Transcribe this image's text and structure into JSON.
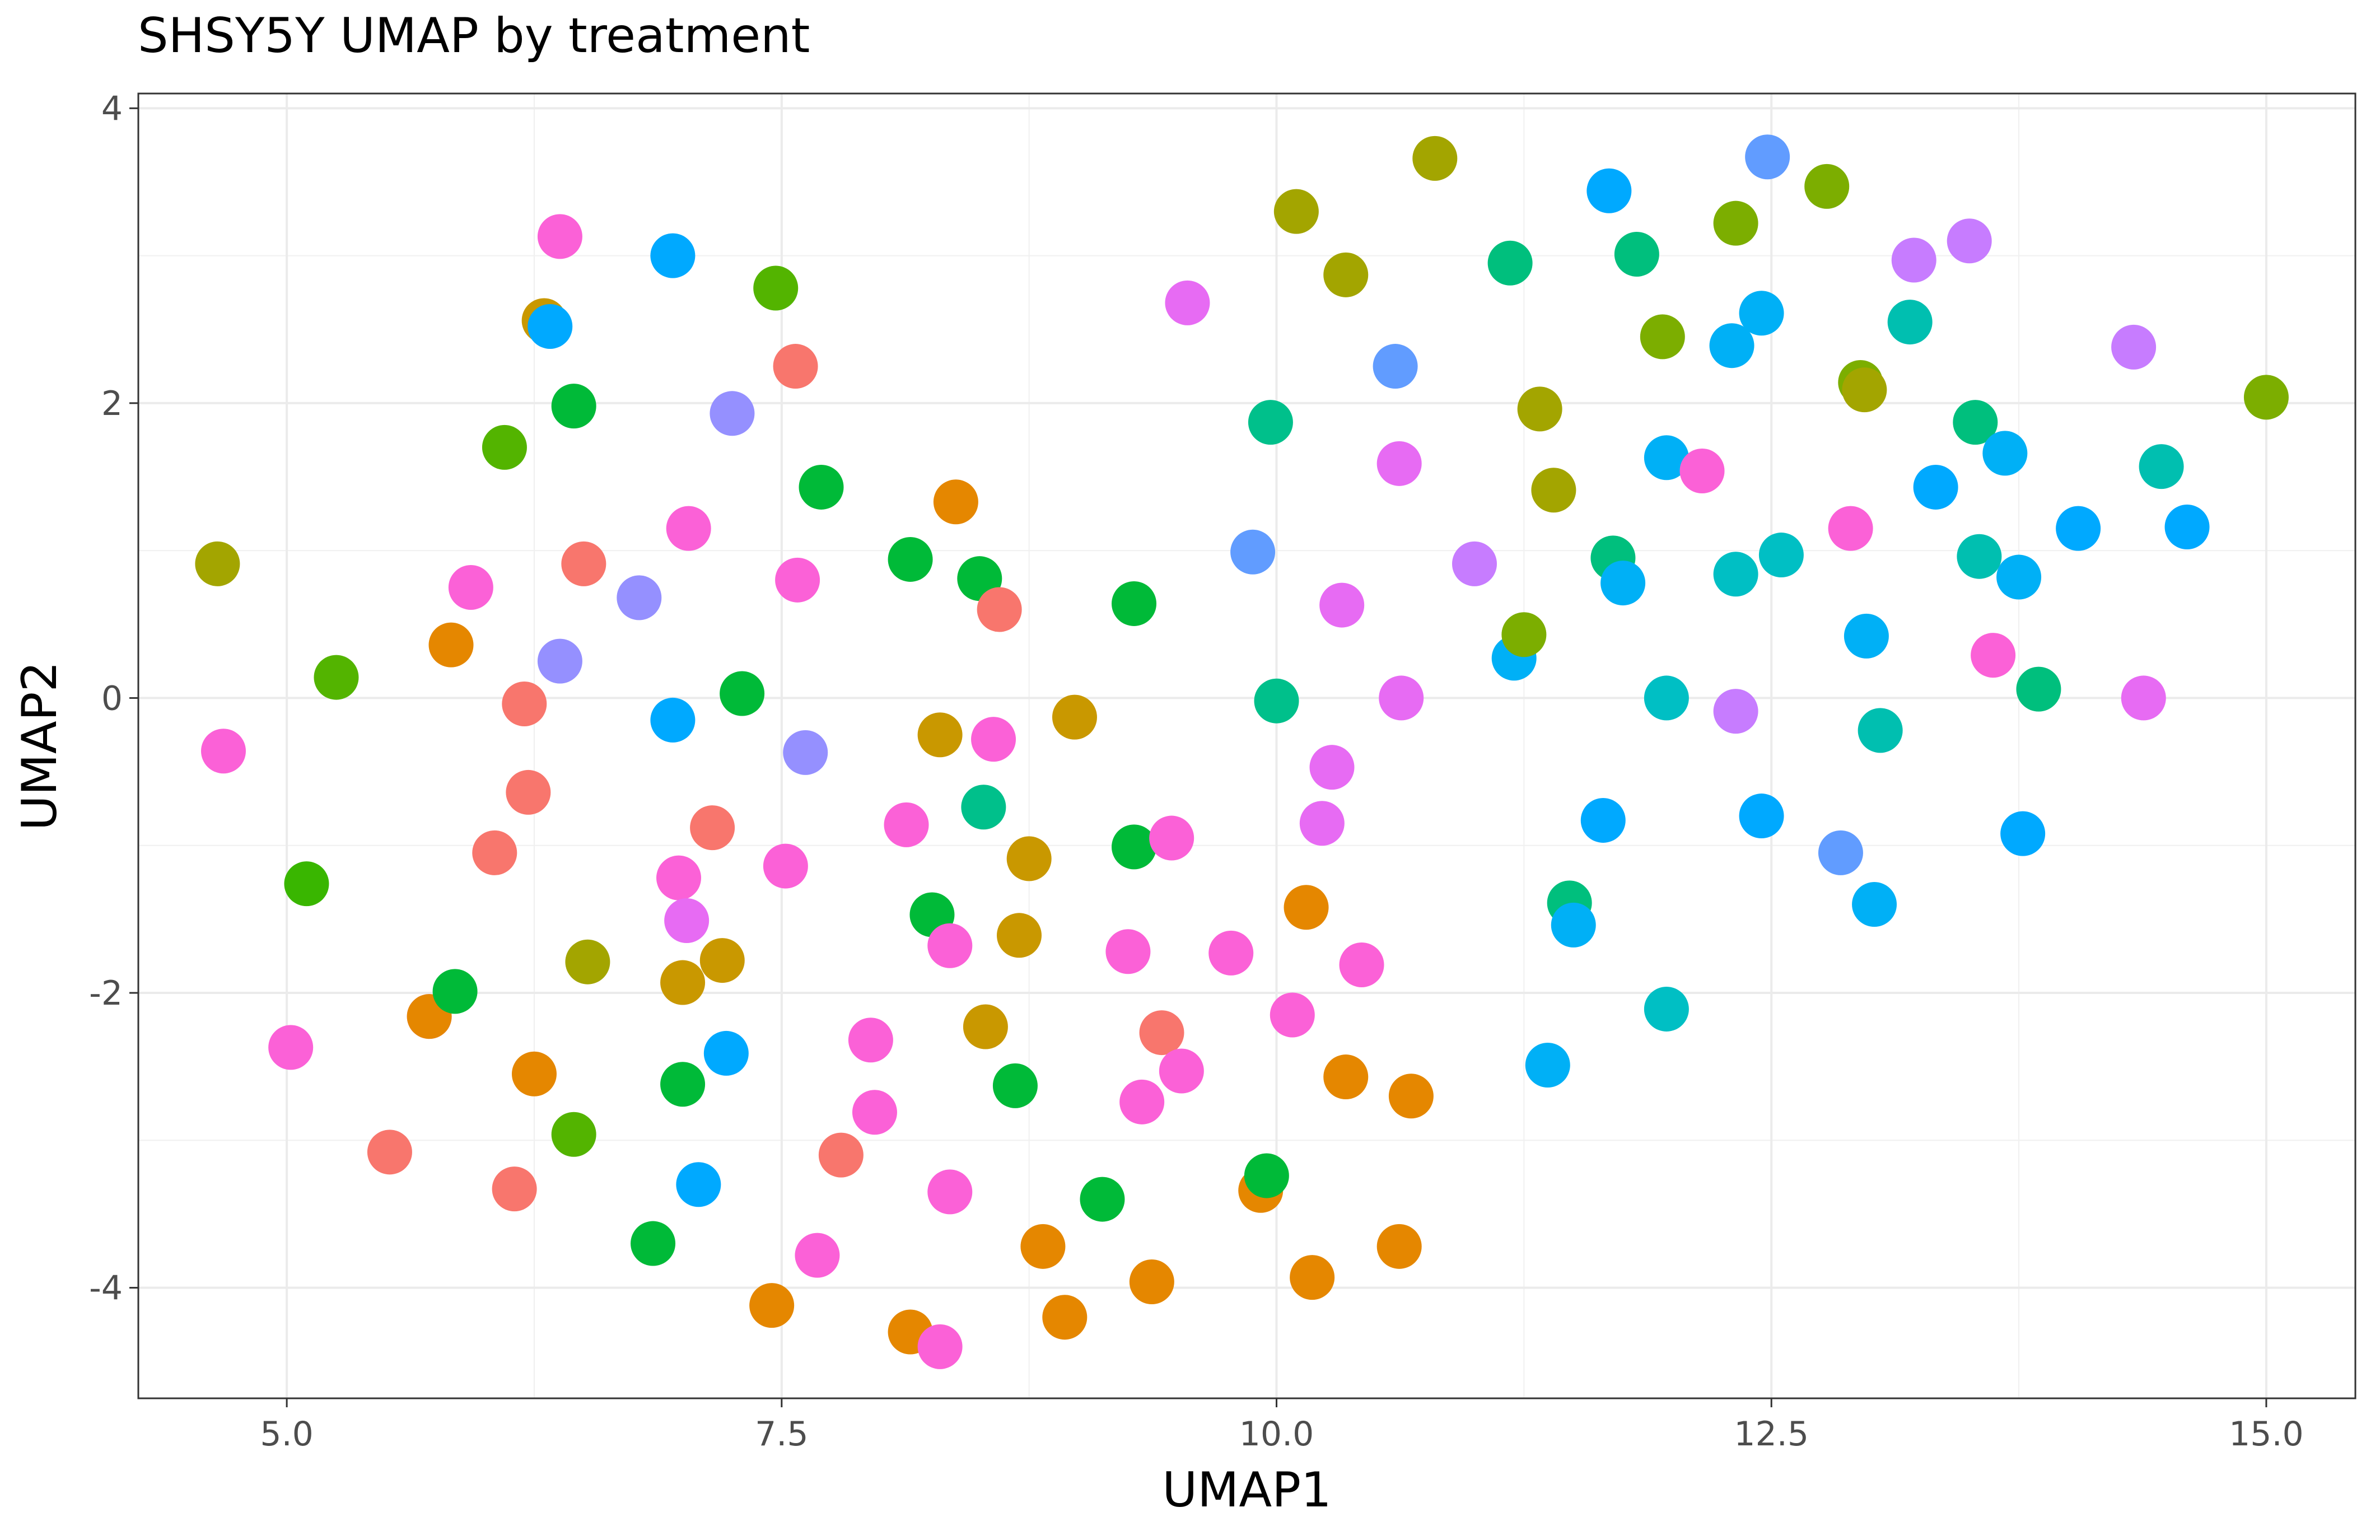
{
  "chart_data": {
    "type": "scatter",
    "title": "SHSY5Y UMAP by treatment",
    "xlabel": "UMAP1",
    "ylabel": "UMAP2",
    "xlim": [
      4.25,
      15.45
    ],
    "ylim": [
      -4.75,
      4.1
    ],
    "x_ticks": [
      5.0,
      7.5,
      10.0,
      12.5,
      15.0
    ],
    "x_tick_labels": [
      "5.0",
      "7.5",
      "10.0",
      "12.5",
      "15.0"
    ],
    "y_ticks": [
      -4,
      -2,
      0,
      2,
      4
    ],
    "y_tick_labels": [
      "-4",
      "-2",
      "0",
      "2",
      "4"
    ],
    "grid": true,
    "legend": "none",
    "points": [
      {
        "x": 4.65,
        "y": 0.91,
        "color": "#A3A500"
      },
      {
        "x": 4.68,
        "y": -0.36,
        "color": "#FB61D7"
      },
      {
        "x": 5.02,
        "y": -2.37,
        "color": "#FB61D7"
      },
      {
        "x": 5.1,
        "y": -1.26,
        "color": "#39B600"
      },
      {
        "x": 5.25,
        "y": 0.14,
        "color": "#53B400"
      },
      {
        "x": 5.52,
        "y": -3.08,
        "color": "#F8766D"
      },
      {
        "x": 5.72,
        "y": -2.16,
        "color": "#E76BF3"
      },
      {
        "x": 5.72,
        "y": -2.16,
        "color": "#E58700"
      },
      {
        "x": 5.83,
        "y": 0.36,
        "color": "#E58700"
      },
      {
        "x": 5.85,
        "y": -1.99,
        "color": "#00BA38"
      },
      {
        "x": 5.93,
        "y": 0.75,
        "color": "#FB61D7"
      },
      {
        "x": 6.05,
        "y": -1.05,
        "color": "#F8766D"
      },
      {
        "x": 6.1,
        "y": 1.7,
        "color": "#53B400"
      },
      {
        "x": 6.15,
        "y": -3.33,
        "color": "#F8766D"
      },
      {
        "x": 6.2,
        "y": -0.04,
        "color": "#F8766D"
      },
      {
        "x": 6.22,
        "y": -0.64,
        "color": "#F8766D"
      },
      {
        "x": 6.25,
        "y": -2.55,
        "color": "#E58700"
      },
      {
        "x": 6.3,
        "y": 2.56,
        "color": "#C99800"
      },
      {
        "x": 6.33,
        "y": 2.52,
        "color": "#00A9FF"
      },
      {
        "x": 6.38,
        "y": 3.13,
        "color": "#FB61D7"
      },
      {
        "x": 6.38,
        "y": 0.25,
        "color": "#9590FF"
      },
      {
        "x": 6.45,
        "y": 1.98,
        "color": "#00BA38"
      },
      {
        "x": 6.45,
        "y": -2.96,
        "color": "#53B400"
      },
      {
        "x": 6.5,
        "y": 0.91,
        "color": "#F8766D"
      },
      {
        "x": 6.52,
        "y": -1.79,
        "color": "#A3A500"
      },
      {
        "x": 6.78,
        "y": 0.68,
        "color": "#9590FF"
      },
      {
        "x": 6.85,
        "y": -3.7,
        "color": "#00BA38"
      },
      {
        "x": 6.95,
        "y": 3.0,
        "color": "#00A9FF"
      },
      {
        "x": 6.95,
        "y": -0.15,
        "color": "#00A9FF"
      },
      {
        "x": 6.98,
        "y": -1.22,
        "color": "#FB61D7"
      },
      {
        "x": 7.0,
        "y": -1.93,
        "color": "#C99800"
      },
      {
        "x": 7.0,
        "y": -2.62,
        "color": "#00BA38"
      },
      {
        "x": 7.02,
        "y": -1.51,
        "color": "#E76BF3"
      },
      {
        "x": 7.03,
        "y": 1.15,
        "color": "#FB61D7"
      },
      {
        "x": 7.08,
        "y": -3.3,
        "color": "#00A9FF"
      },
      {
        "x": 7.15,
        "y": -0.88,
        "color": "#F8766D"
      },
      {
        "x": 7.2,
        "y": -1.78,
        "color": "#C99800"
      },
      {
        "x": 7.22,
        "y": -2.41,
        "color": "#00A9FF"
      },
      {
        "x": 7.25,
        "y": 1.93,
        "color": "#9590FF"
      },
      {
        "x": 7.3,
        "y": 0.03,
        "color": "#00BA38"
      },
      {
        "x": 7.45,
        "y": -4.12,
        "color": "#E58700"
      },
      {
        "x": 7.47,
        "y": 2.78,
        "color": "#53B400"
      },
      {
        "x": 7.52,
        "y": -1.14,
        "color": "#FB61D7"
      },
      {
        "x": 7.57,
        "y": 2.25,
        "color": "#F8766D"
      },
      {
        "x": 7.58,
        "y": 0.8,
        "color": "#FB61D7"
      },
      {
        "x": 7.62,
        "y": -0.37,
        "color": "#9590FF"
      },
      {
        "x": 7.68,
        "y": -3.78,
        "color": "#FB61D7"
      },
      {
        "x": 7.7,
        "y": 1.43,
        "color": "#00BA38"
      },
      {
        "x": 7.8,
        "y": -3.1,
        "color": "#F8766D"
      },
      {
        "x": 7.95,
        "y": -2.32,
        "color": "#FB61D7"
      },
      {
        "x": 7.97,
        "y": -2.81,
        "color": "#FB61D7"
      },
      {
        "x": 8.13,
        "y": -0.86,
        "color": "#FB61D7"
      },
      {
        "x": 8.15,
        "y": -4.3,
        "color": "#E58700"
      },
      {
        "x": 8.15,
        "y": 0.94,
        "color": "#00BA38"
      },
      {
        "x": 8.26,
        "y": -1.47,
        "color": "#00BA38"
      },
      {
        "x": 8.3,
        "y": -4.4,
        "color": "#FB61D7"
      },
      {
        "x": 8.3,
        "y": -0.25,
        "color": "#C99800"
      },
      {
        "x": 8.35,
        "y": -1.68,
        "color": "#FB61D7"
      },
      {
        "x": 8.35,
        "y": -3.35,
        "color": "#FB61D7"
      },
      {
        "x": 8.38,
        "y": 1.33,
        "color": "#E58700"
      },
      {
        "x": 8.5,
        "y": 0.81,
        "color": "#00BA38"
      },
      {
        "x": 8.52,
        "y": -0.74,
        "color": "#00C08B"
      },
      {
        "x": 8.53,
        "y": -2.23,
        "color": "#C99800"
      },
      {
        "x": 8.57,
        "y": -0.28,
        "color": "#FB61D7"
      },
      {
        "x": 8.6,
        "y": 0.6,
        "color": "#F8766D"
      },
      {
        "x": 8.68,
        "y": -2.63,
        "color": "#00BA38"
      },
      {
        "x": 8.7,
        "y": -1.61,
        "color": "#C99800"
      },
      {
        "x": 8.75,
        "y": -1.09,
        "color": "#C99800"
      },
      {
        "x": 8.82,
        "y": -3.72,
        "color": "#E58700"
      },
      {
        "x": 8.93,
        "y": -4.2,
        "color": "#E58700"
      },
      {
        "x": 8.98,
        "y": -0.13,
        "color": "#C99800"
      },
      {
        "x": 9.12,
        "y": -3.4,
        "color": "#00BA38"
      },
      {
        "x": 9.25,
        "y": -1.72,
        "color": "#FB61D7"
      },
      {
        "x": 9.28,
        "y": 0.64,
        "color": "#00BA38"
      },
      {
        "x": 9.28,
        "y": -1.01,
        "color": "#00BA38"
      },
      {
        "x": 9.32,
        "y": -2.74,
        "color": "#FB61D7"
      },
      {
        "x": 9.37,
        "y": -3.96,
        "color": "#E58700"
      },
      {
        "x": 9.42,
        "y": -2.27,
        "color": "#F8766D"
      },
      {
        "x": 9.47,
        "y": -0.95,
        "color": "#FB61D7"
      },
      {
        "x": 9.52,
        "y": -2.53,
        "color": "#FB61D7"
      },
      {
        "x": 9.55,
        "y": 2.68,
        "color": "#E76BF3"
      },
      {
        "x": 9.77,
        "y": -1.73,
        "color": "#FB61D7"
      },
      {
        "x": 9.88,
        "y": 0.99,
        "color": "#619CFF"
      },
      {
        "x": 9.92,
        "y": -3.34,
        "color": "#E58700"
      },
      {
        "x": 9.95,
        "y": -3.24,
        "color": "#00BA38"
      },
      {
        "x": 9.97,
        "y": 1.87,
        "color": "#00C08B"
      },
      {
        "x": 10.0,
        "y": -0.02,
        "color": "#00C08B"
      },
      {
        "x": 10.08,
        "y": -2.15,
        "color": "#FB61D7"
      },
      {
        "x": 10.1,
        "y": 3.3,
        "color": "#A3A500"
      },
      {
        "x": 10.15,
        "y": -1.42,
        "color": "#E58700"
      },
      {
        "x": 10.18,
        "y": -3.93,
        "color": "#E58700"
      },
      {
        "x": 10.23,
        "y": -0.85,
        "color": "#E76BF3"
      },
      {
        "x": 10.28,
        "y": -0.47,
        "color": "#E76BF3"
      },
      {
        "x": 10.33,
        "y": 0.63,
        "color": "#E76BF3"
      },
      {
        "x": 10.35,
        "y": -2.57,
        "color": "#E58700"
      },
      {
        "x": 10.35,
        "y": 2.87,
        "color": "#A3A500"
      },
      {
        "x": 10.43,
        "y": -1.81,
        "color": "#FB61D7"
      },
      {
        "x": 10.6,
        "y": 2.25,
        "color": "#619CFF"
      },
      {
        "x": 10.62,
        "y": 1.59,
        "color": "#E76BF3"
      },
      {
        "x": 10.63,
        "y": 0.0,
        "color": "#E76BF3"
      },
      {
        "x": 10.62,
        "y": -3.72,
        "color": "#E58700"
      },
      {
        "x": 10.68,
        "y": -2.7,
        "color": "#E58700"
      },
      {
        "x": 10.8,
        "y": 3.66,
        "color": "#A3A500"
      },
      {
        "x": 11.0,
        "y": 0.91,
        "color": "#C77CFF"
      },
      {
        "x": 11.18,
        "y": 2.95,
        "color": "#00BF7D"
      },
      {
        "x": 11.2,
        "y": 0.27,
        "color": "#00B0F6"
      },
      {
        "x": 11.25,
        "y": 0.43,
        "color": "#7CAE00"
      },
      {
        "x": 11.33,
        "y": 1.96,
        "color": "#A3A500"
      },
      {
        "x": 11.37,
        "y": -2.49,
        "color": "#00B0F6"
      },
      {
        "x": 11.4,
        "y": 1.41,
        "color": "#A3A500"
      },
      {
        "x": 11.48,
        "y": -1.39,
        "color": "#00BF7D"
      },
      {
        "x": 11.5,
        "y": -1.54,
        "color": "#00B0F6"
      },
      {
        "x": 11.65,
        "y": -0.83,
        "color": "#00A9FF"
      },
      {
        "x": 11.68,
        "y": 3.44,
        "color": "#00A9FF"
      },
      {
        "x": 11.7,
        "y": 0.95,
        "color": "#00BF7D"
      },
      {
        "x": 11.75,
        "y": 0.78,
        "color": "#00B0F6"
      },
      {
        "x": 11.82,
        "y": 3.01,
        "color": "#00BF7D"
      },
      {
        "x": 11.95,
        "y": 2.45,
        "color": "#7CAE00"
      },
      {
        "x": 11.97,
        "y": 1.63,
        "color": "#00B0F6"
      },
      {
        "x": 11.97,
        "y": 0.0,
        "color": "#00BFC4"
      },
      {
        "x": 11.97,
        "y": -2.11,
        "color": "#00BFC4"
      },
      {
        "x": 12.15,
        "y": 1.54,
        "color": "#FB61D7"
      },
      {
        "x": 12.3,
        "y": 2.39,
        "color": "#00B0F6"
      },
      {
        "x": 12.32,
        "y": 3.22,
        "color": "#7CAE00"
      },
      {
        "x": 12.32,
        "y": 0.84,
        "color": "#00BFC4"
      },
      {
        "x": 12.32,
        "y": -0.09,
        "color": "#C77CFF"
      },
      {
        "x": 12.45,
        "y": 2.61,
        "color": "#00B0F6"
      },
      {
        "x": 12.45,
        "y": -0.8,
        "color": "#00A9FF"
      },
      {
        "x": 12.48,
        "y": 3.67,
        "color": "#619CFF"
      },
      {
        "x": 12.55,
        "y": 0.97,
        "color": "#00BFC4"
      },
      {
        "x": 12.78,
        "y": 3.47,
        "color": "#7CAE00"
      },
      {
        "x": 12.85,
        "y": -1.05,
        "color": "#619CFF"
      },
      {
        "x": 12.9,
        "y": 1.15,
        "color": "#FB61D7"
      },
      {
        "x": 12.95,
        "y": 2.14,
        "color": "#7CAE00"
      },
      {
        "x": 12.97,
        "y": 2.09,
        "color": "#A3A500"
      },
      {
        "x": 12.98,
        "y": 0.42,
        "color": "#00B0F6"
      },
      {
        "x": 13.02,
        "y": -1.4,
        "color": "#00B0F6"
      },
      {
        "x": 13.05,
        "y": -0.22,
        "color": "#00BFB0"
      },
      {
        "x": 13.2,
        "y": 2.55,
        "color": "#00BFB0"
      },
      {
        "x": 13.22,
        "y": 2.97,
        "color": "#C77CFF"
      },
      {
        "x": 13.33,
        "y": 1.43,
        "color": "#00A9FF"
      },
      {
        "x": 13.5,
        "y": 3.1,
        "color": "#C77CFF"
      },
      {
        "x": 13.53,
        "y": 1.87,
        "color": "#00BF7D"
      },
      {
        "x": 13.55,
        "y": 0.96,
        "color": "#00BFB0"
      },
      {
        "x": 13.62,
        "y": 0.29,
        "color": "#FB61D7"
      },
      {
        "x": 13.68,
        "y": 1.66,
        "color": "#00B0F6"
      },
      {
        "x": 13.75,
        "y": 0.82,
        "color": "#00B0F6"
      },
      {
        "x": 13.77,
        "y": -0.92,
        "color": "#00A9FF"
      },
      {
        "x": 13.85,
        "y": 0.06,
        "color": "#00BF7D"
      },
      {
        "x": 14.05,
        "y": 1.15,
        "color": "#00A9FF"
      },
      {
        "x": 14.33,
        "y": 2.38,
        "color": "#C77CFF"
      },
      {
        "x": 14.38,
        "y": 0.0,
        "color": "#E76BF3"
      },
      {
        "x": 14.47,
        "y": 1.57,
        "color": "#00BFB0"
      },
      {
        "x": 14.6,
        "y": 1.16,
        "color": "#00A9FF"
      },
      {
        "x": 15.0,
        "y": 2.04,
        "color": "#7CAE00"
      }
    ]
  }
}
